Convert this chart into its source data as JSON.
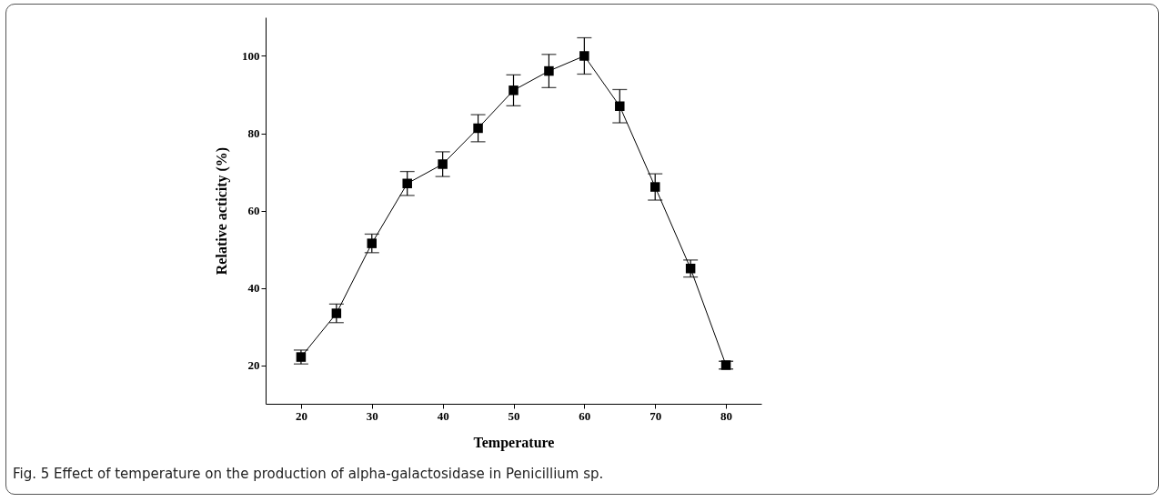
{
  "chart_data": {
    "type": "line",
    "xlabel": "Temperature",
    "ylabel": "Relative acticity (%)",
    "annotations": [
      "Fig. 5 Effect of temperature on the production of alpha-galactosidase in Penicillium sp."
    ],
    "x": [
      20,
      25,
      30,
      35,
      40,
      45,
      50,
      55,
      60,
      65,
      70,
      75,
      80
    ],
    "series": [
      {
        "color": "#000000",
        "values": [
          22.1,
          33.4,
          51.5,
          67,
          72,
          81.3,
          91.1,
          96.1,
          100,
          87,
          66.1,
          45,
          20
        ],
        "errors": [
          1.8,
          2.4,
          2.4,
          3.1,
          3.2,
          3.5,
          4,
          4.3,
          4.7,
          4.3,
          3.4,
          2.2,
          1
        ]
      }
    ],
    "xlim": [
      15,
      85
    ],
    "xticks": [
      20,
      30,
      40,
      50,
      60,
      70,
      80
    ],
    "ylim": [
      10,
      110
    ],
    "yticks": [
      20,
      40,
      60,
      80,
      100
    ],
    "grid": false,
    "marker": "square",
    "line_style": "solid"
  }
}
